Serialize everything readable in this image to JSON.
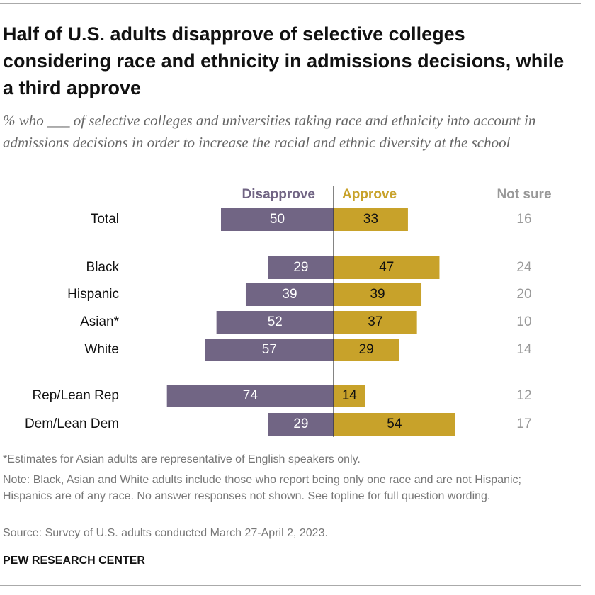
{
  "chart_data": {
    "type": "diverging_bar",
    "title": "Half of U.S. adults disapprove of selective colleges considering race and ethnicity in admissions decisions, while a third approve",
    "subtitle": "% who ___ of selective colleges and universities taking race and ethnicity into account in admissions decisions in order to increase the racial and ethnic diversity at the school",
    "categories": [
      "Total",
      "Black",
      "Hispanic",
      "Asian*",
      "White",
      "Rep/Lean Rep",
      "Dem/Lean Dem"
    ],
    "series": [
      {
        "name": "Disapprove",
        "color": "#716584",
        "values": [
          50,
          29,
          39,
          52,
          57,
          74,
          29
        ]
      },
      {
        "name": "Approve",
        "color": "#c8a22a",
        "values": [
          33,
          47,
          39,
          37,
          29,
          14,
          54
        ]
      },
      {
        "name": "Not sure",
        "color": "#999999",
        "values": [
          16,
          24,
          20,
          10,
          14,
          12,
          17
        ]
      }
    ],
    "footnote": "*Estimates for Asian adults are representative of English speakers only.",
    "note": "Note: Black, Asian and White adults include those who report being only one race and are not Hispanic; Hispanics are of any race. No answer responses not shown. See topline for full question wording.",
    "source": "Source: Survey of U.S. adults conducted March 27-April 2, 2023.",
    "credit": "PEW RESEARCH CENTER"
  }
}
